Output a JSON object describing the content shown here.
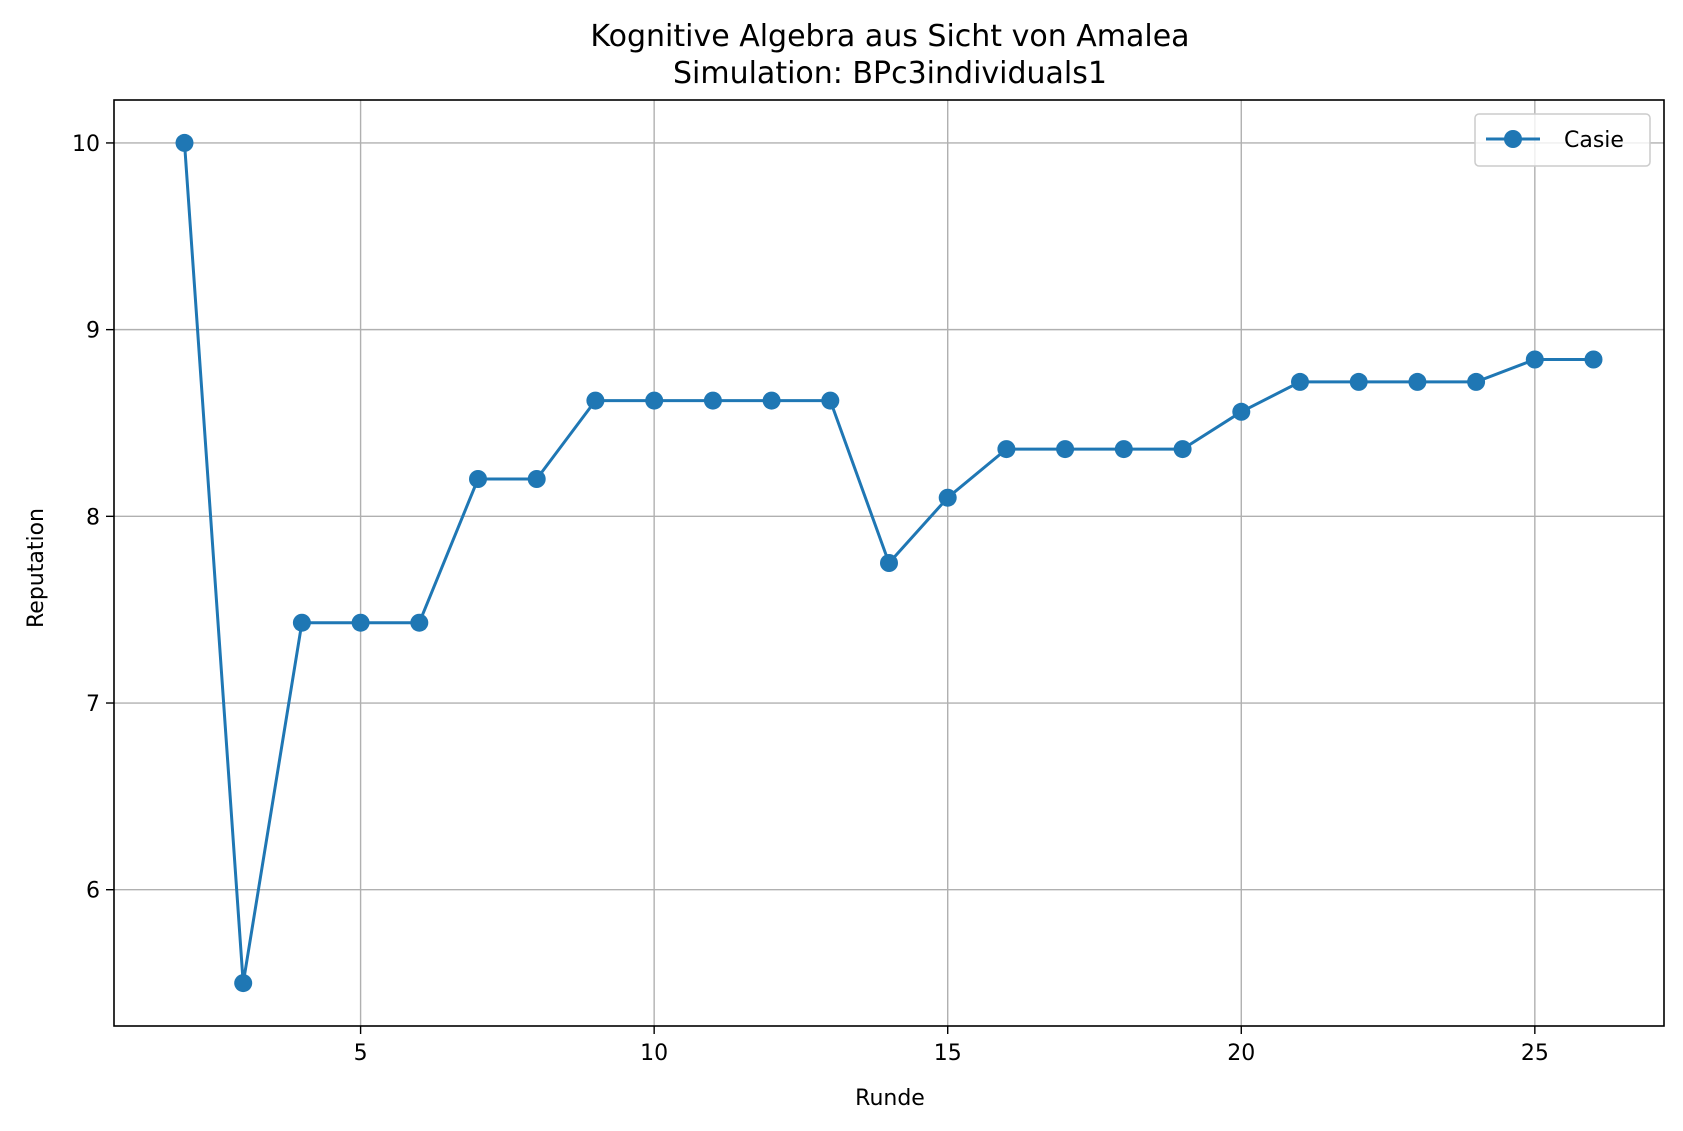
{
  "chart_data": {
    "type": "line",
    "title": "Kognitive Algebra aus Sicht von Amalea",
    "subtitle": "Simulation: BPc3individuals1",
    "xlabel": "Runde",
    "ylabel": "Reputation",
    "xlim": [
      0.8,
      27.2
    ],
    "ylim": [
      5.27,
      10.23
    ],
    "xticks": [
      5,
      10,
      15,
      20,
      25
    ],
    "yticks": [
      6,
      7,
      8,
      9,
      10
    ],
    "grid": true,
    "legend_position": "top-right",
    "colors": {
      "series": "#1f77b4",
      "grid": "#b0b0b0",
      "axes": "#000000"
    },
    "series": [
      {
        "name": "Casie",
        "marker": "circle",
        "x": [
          2,
          3,
          4,
          5,
          6,
          7,
          8,
          9,
          10,
          11,
          12,
          13,
          14,
          15,
          16,
          17,
          18,
          19,
          20,
          21,
          22,
          23,
          24,
          25,
          26
        ],
        "y": [
          10.0,
          5.5,
          7.43,
          7.43,
          7.43,
          8.2,
          8.2,
          8.62,
          8.62,
          8.62,
          8.62,
          8.62,
          7.75,
          8.1,
          8.36,
          8.36,
          8.36,
          8.36,
          8.56,
          8.72,
          8.72,
          8.72,
          8.72,
          8.84,
          8.84
        ]
      }
    ]
  }
}
